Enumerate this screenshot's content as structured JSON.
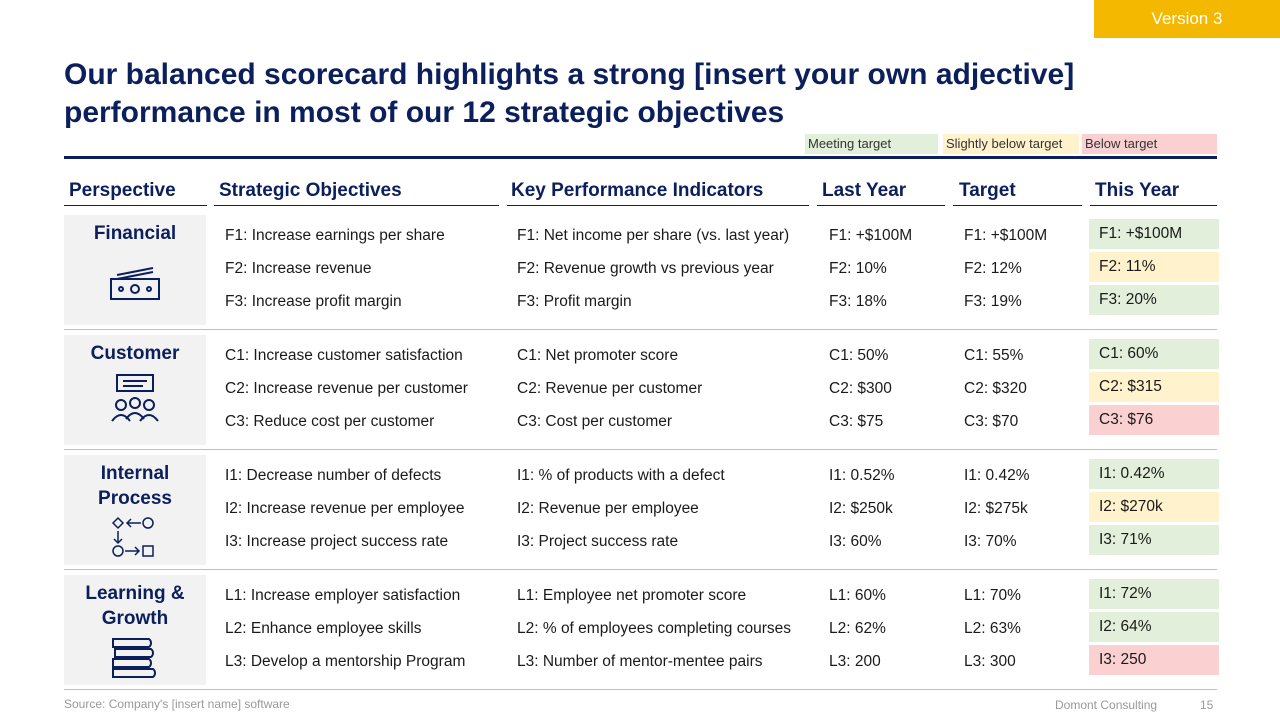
{
  "version": "Version 3",
  "title_lines": [
    "Our balanced scorecard highlights a strong [insert your own adjective]",
    "performance in most of our 12 strategic objectives"
  ],
  "legend": [
    {
      "label": "Meeting target",
      "color": "#e2efda"
    },
    {
      "label": "Slightly below target",
      "color": "#fff2cc"
    },
    {
      "label": "Below target",
      "color": "#fbd0d1"
    }
  ],
  "headers": [
    "Perspective",
    "Strategic Objectives",
    "Key Performance Indicators",
    "Last Year",
    "Target",
    "This Year"
  ],
  "sections": [
    {
      "perspective": "Financial",
      "rows": [
        {
          "objective": "F1: Increase earnings per share",
          "kpi": "F1: Net income per share (vs. last year)",
          "last_year": "F1: +$100M",
          "target": "F1: +$100M",
          "this_year": "F1: +$100M",
          "status": 0
        },
        {
          "objective": "F2: Increase revenue",
          "kpi": "F2: Revenue growth vs previous year",
          "last_year": "F2: 10%",
          "target": "F2: 12%",
          "this_year": "F2: 11%",
          "status": 1
        },
        {
          "objective": "F3: Increase profit margin",
          "kpi": "F3: Profit margin",
          "last_year": "F3: 18%",
          "target": "F3: 19%",
          "this_year": "F3: 20%",
          "status": 0
        }
      ]
    },
    {
      "perspective": "Customer",
      "rows": [
        {
          "objective": "C1: Increase customer satisfaction",
          "kpi": "C1: Net promoter score",
          "last_year": "C1: 50%",
          "target": "C1: 55%",
          "this_year": "C1: 60%",
          "status": 0
        },
        {
          "objective": "C2: Increase revenue per customer",
          "kpi": "C2: Revenue per customer",
          "last_year": "C2: $300",
          "target": "C2: $320",
          "this_year": "C2: $315",
          "status": 1
        },
        {
          "objective": "C3: Reduce cost per customer",
          "kpi": "C3: Cost per customer",
          "last_year": "C3: $75",
          "target": "C3: $70",
          "this_year": "C3: $76",
          "status": 2
        }
      ]
    },
    {
      "perspective": "Internal Process",
      "rows": [
        {
          "objective": "I1: Decrease number of defects",
          "kpi": "I1: % of products with a defect",
          "last_year": "I1: 0.52%",
          "target": "I1: 0.42%",
          "this_year": "I1: 0.42%",
          "status": 0
        },
        {
          "objective": "I2: Increase revenue per employee",
          "kpi": "I2: Revenue per employee",
          "last_year": "I2: $250k",
          "target": "I2: $275k",
          "this_year": "I2: $270k",
          "status": 1
        },
        {
          "objective": "I3: Increase project success rate",
          "kpi": "I3: Project success rate",
          "last_year": "I3: 60%",
          "target": "I3: 70%",
          "this_year": "I3: 71%",
          "status": 0
        }
      ]
    },
    {
      "perspective": "Learning & Growth",
      "rows": [
        {
          "objective": "L1: Increase employer satisfaction",
          "kpi": "L1: Employee net promoter score",
          "last_year": "L1: 60%",
          "target": "L1: 70%",
          "this_year": "I1: 72%",
          "status": 0
        },
        {
          "objective": "L2: Enhance employee skills",
          "kpi": "L2: % of employees completing courses",
          "last_year": "L2: 62%",
          "target": "L2: 63%",
          "this_year": "I2: 64%",
          "status": 0
        },
        {
          "objective": "L3: Develop a mentorship Program",
          "kpi": "L3: Number of mentor-mentee pairs",
          "last_year": "L3: 200",
          "target": "L3: 300",
          "this_year": "I3: 250",
          "status": 2
        }
      ]
    }
  ],
  "footer": {
    "source": "Source: Company's [insert name] software",
    "company": "Domont Consulting",
    "page": 15
  }
}
